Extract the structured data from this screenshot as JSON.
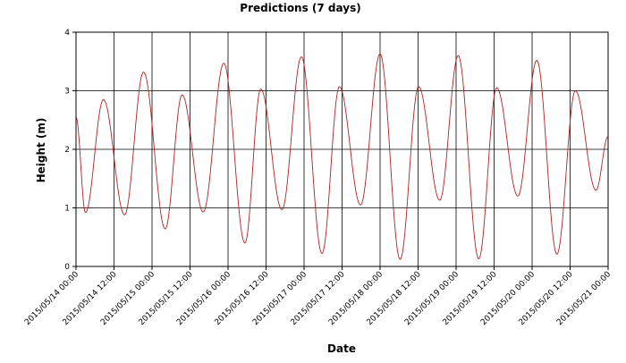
{
  "chart_data": {
    "type": "line",
    "title": "Predictions (7 days)",
    "xlabel": "Date",
    "ylabel": "Height (m)",
    "ylim": [
      0,
      4
    ],
    "yticks": [
      "0",
      "1",
      "2",
      "3",
      "4"
    ],
    "xlim": [
      "2015/05/14 00:00",
      "2015/05/21 00:00"
    ],
    "xticks": [
      "2015/05/14 00:00",
      "2015/05/14 12:00",
      "2015/05/15 00:00",
      "2015/05/15 12:00",
      "2015/05/16 00:00",
      "2015/05/16 12:00",
      "2015/05/17 00:00",
      "2015/05/17 12:00",
      "2015/05/18 00:00",
      "2015/05/18 12:00",
      "2015/05/19 00:00",
      "2015/05/19 12:00",
      "2015/05/20 00:00",
      "2015/05/20 12:00",
      "2015/05/21 00:00"
    ],
    "grid": true,
    "line_color": "#b22222",
    "series": [
      {
        "extrema": [
          {
            "x": "2015/05/14 00:00",
            "y": 2.55
          },
          {
            "x": "2015/05/14 03:00",
            "y": 0.92
          },
          {
            "x": "2015/05/14 08:40",
            "y": 2.85
          },
          {
            "x": "2015/05/14 15:20",
            "y": 0.88
          },
          {
            "x": "2015/05/14 21:20",
            "y": 3.32
          },
          {
            "x": "2015/05/15 04:10",
            "y": 0.64
          },
          {
            "x": "2015/05/15 09:30",
            "y": 2.93
          },
          {
            "x": "2015/05/15 16:10",
            "y": 0.93
          },
          {
            "x": "2015/05/15 22:40",
            "y": 3.47
          },
          {
            "x": "2015/05/16 05:20",
            "y": 0.4
          },
          {
            "x": "2015/05/16 10:20",
            "y": 3.03
          },
          {
            "x": "2015/05/16 17:00",
            "y": 0.97
          },
          {
            "x": "2015/05/16 23:10",
            "y": 3.58
          },
          {
            "x": "2015/05/17 05:40",
            "y": 0.22
          },
          {
            "x": "2015/05/17 11:10",
            "y": 3.07
          },
          {
            "x": "2015/05/17 17:50",
            "y": 1.05
          },
          {
            "x": "2015/05/18 00:00",
            "y": 3.63
          },
          {
            "x": "2015/05/18 06:20",
            "y": 0.12
          },
          {
            "x": "2015/05/18 12:10",
            "y": 3.07
          },
          {
            "x": "2015/05/18 18:50",
            "y": 1.13
          },
          {
            "x": "2015/05/19 00:40",
            "y": 3.6
          },
          {
            "x": "2015/05/19 07:10",
            "y": 0.13
          },
          {
            "x": "2015/05/19 12:50",
            "y": 3.05
          },
          {
            "x": "2015/05/19 19:30",
            "y": 1.2
          },
          {
            "x": "2015/05/20 01:30",
            "y": 3.52
          },
          {
            "x": "2015/05/20 07:50",
            "y": 0.21
          },
          {
            "x": "2015/05/20 13:40",
            "y": 3.0
          },
          {
            "x": "2015/05/20 20:10",
            "y": 1.3
          },
          {
            "x": "2015/05/21 00:00",
            "y": 2.22
          }
        ]
      }
    ]
  }
}
